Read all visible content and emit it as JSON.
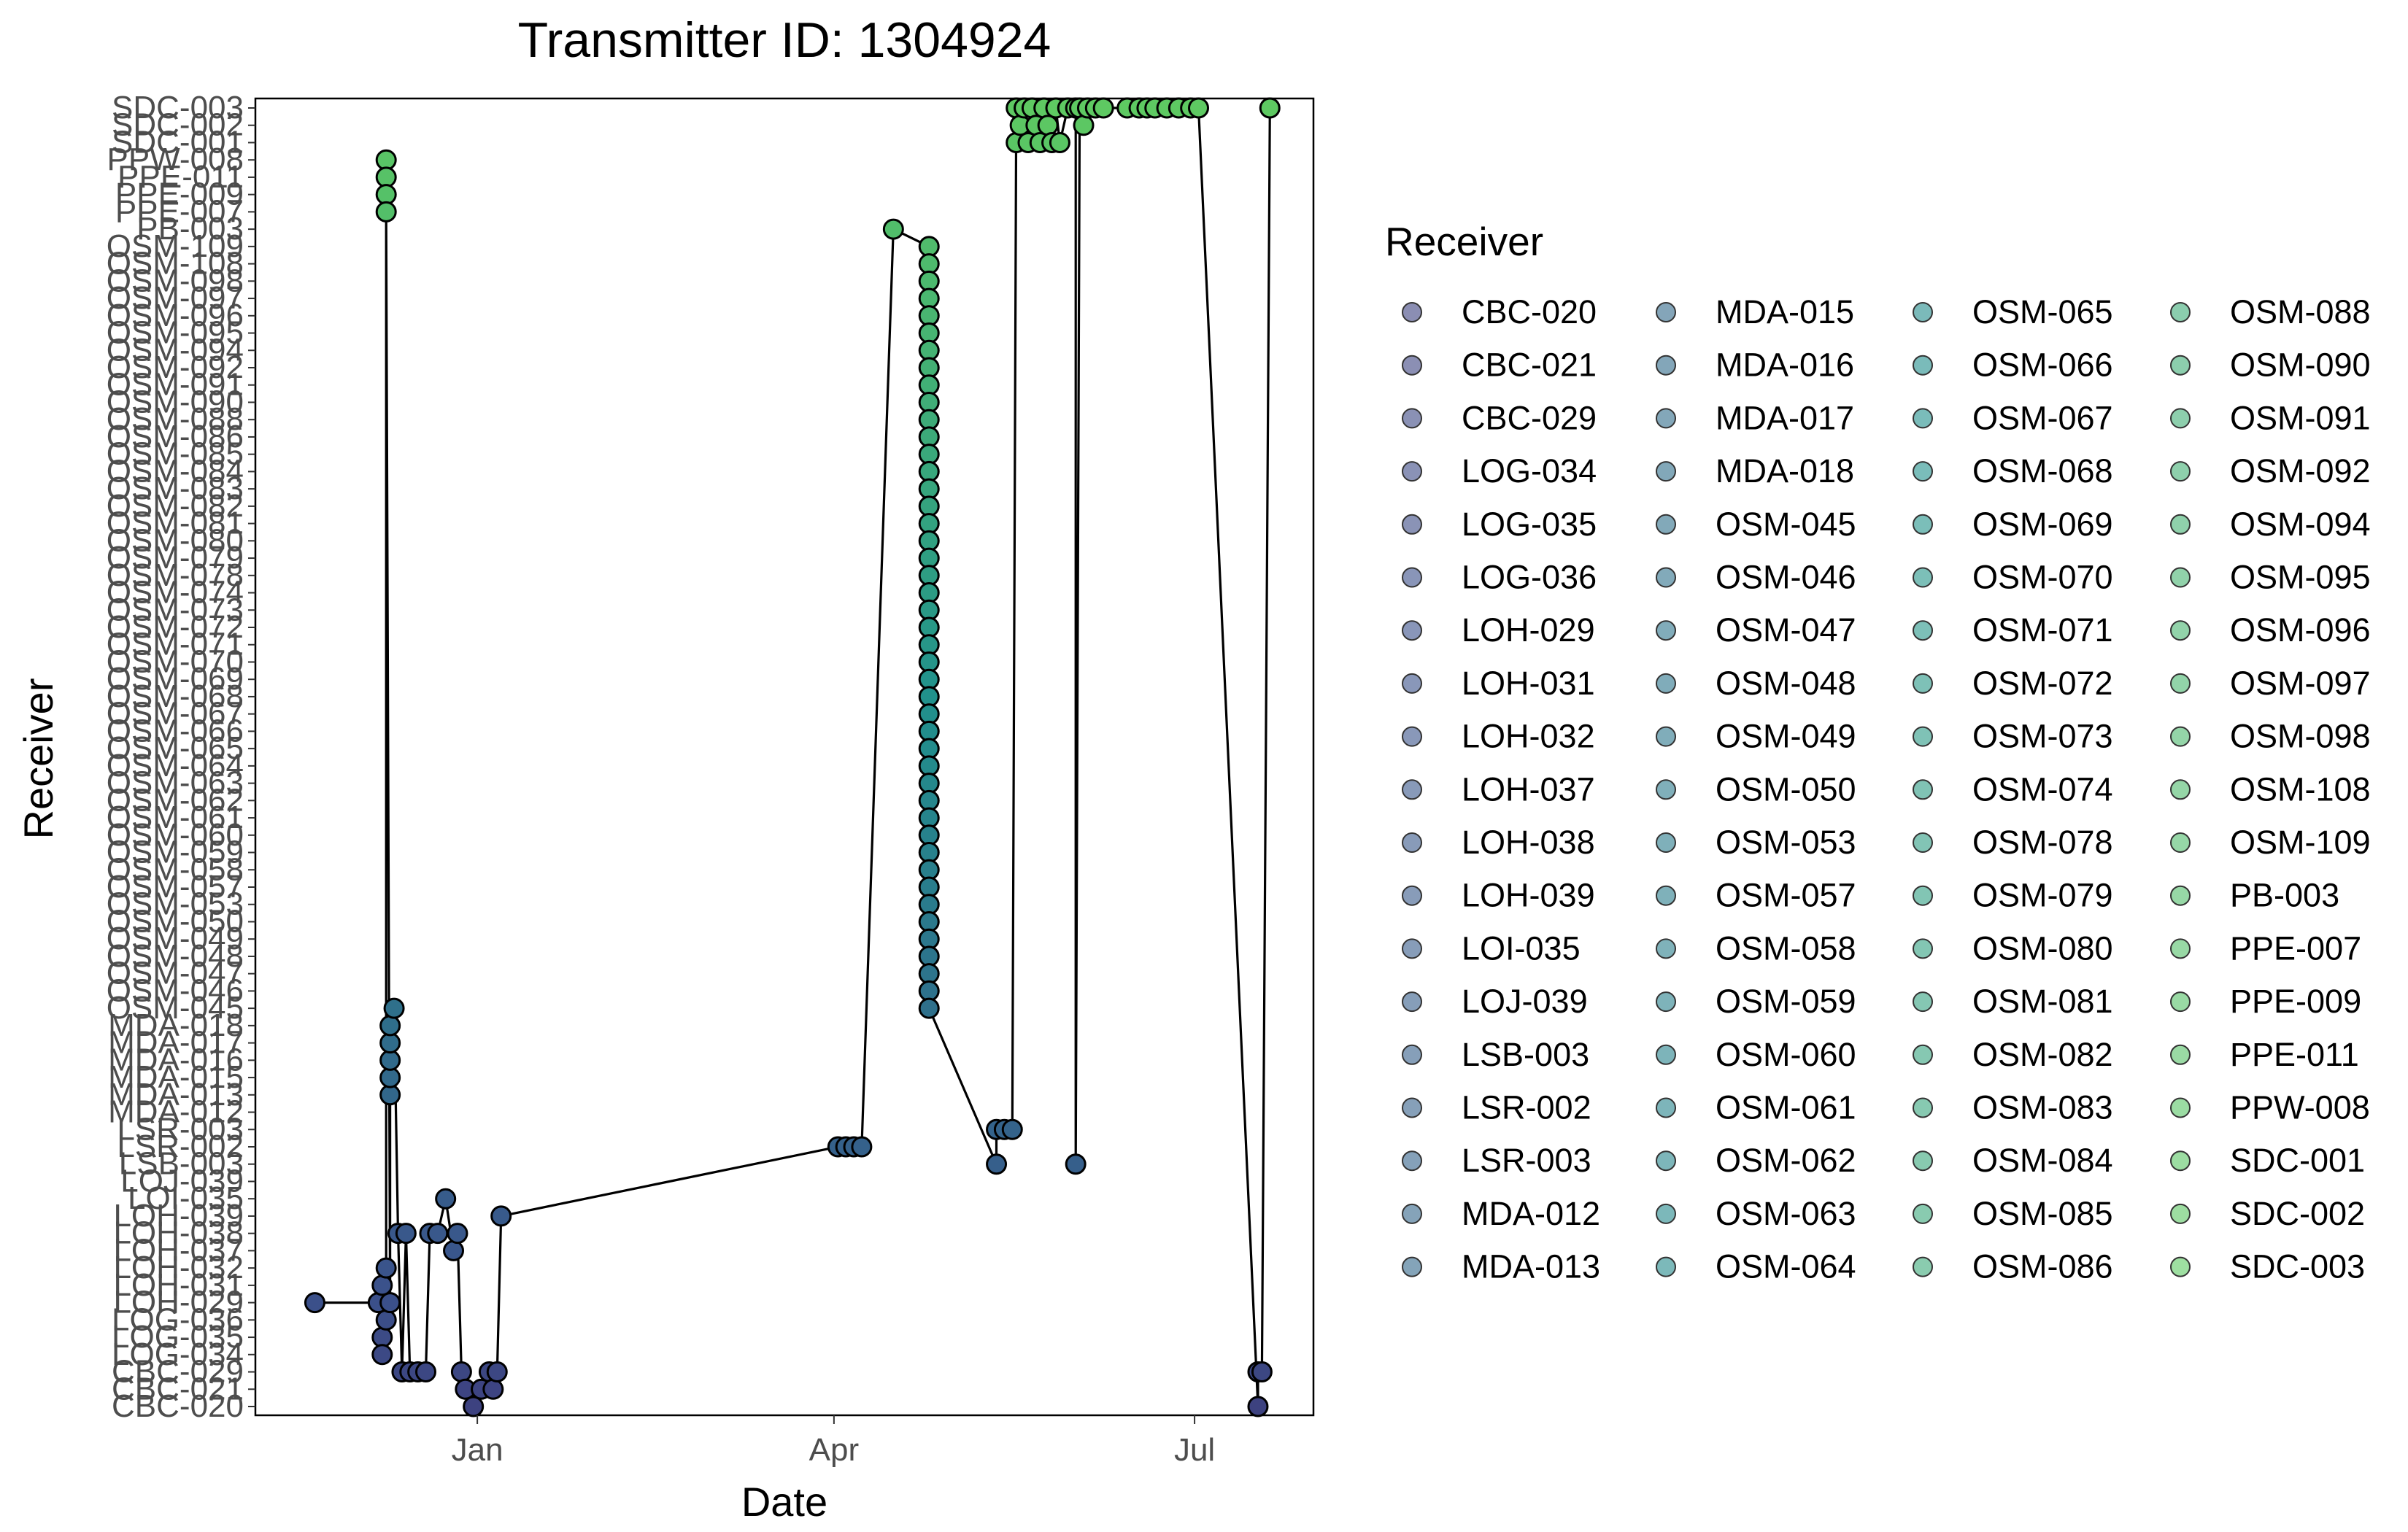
{
  "chart_data": {
    "type": "scatter",
    "title": "Transmitter ID: 1304924",
    "xlabel": "Date",
    "ylabel": "Receiver",
    "x_tick_labels": [
      "Jan",
      "Apr",
      "Jul"
    ],
    "x_ticks": [
      "2021-01-01",
      "2021-04-01",
      "2021-07-01"
    ],
    "xlim": [
      "2020-11-06",
      "2021-07-31"
    ],
    "grid": false,
    "legend": {
      "title": "Receiver",
      "placement": "right",
      "columns": 4
    },
    "receivers": [
      "CBC-020",
      "CBC-021",
      "CBC-029",
      "LOG-034",
      "LOG-035",
      "LOG-036",
      "LOH-029",
      "LOH-031",
      "LOH-032",
      "LOH-037",
      "LOH-038",
      "LOH-039",
      "LOI-035",
      "LOJ-039",
      "LSB-003",
      "LSR-002",
      "LSR-003",
      "MDA-012",
      "MDA-013",
      "MDA-015",
      "MDA-016",
      "MDA-017",
      "MDA-018",
      "OSM-045",
      "OSM-046",
      "OSM-047",
      "OSM-048",
      "OSM-049",
      "OSM-050",
      "OSM-053",
      "OSM-057",
      "OSM-058",
      "OSM-059",
      "OSM-060",
      "OSM-061",
      "OSM-062",
      "OSM-063",
      "OSM-064",
      "OSM-065",
      "OSM-066",
      "OSM-067",
      "OSM-068",
      "OSM-069",
      "OSM-070",
      "OSM-071",
      "OSM-072",
      "OSM-073",
      "OSM-074",
      "OSM-078",
      "OSM-079",
      "OSM-080",
      "OSM-081",
      "OSM-082",
      "OSM-083",
      "OSM-084",
      "OSM-085",
      "OSM-086",
      "OSM-088",
      "OSM-090",
      "OSM-091",
      "OSM-092",
      "OSM-094",
      "OSM-095",
      "OSM-096",
      "OSM-097",
      "OSM-098",
      "OSM-108",
      "OSM-109",
      "PB-003",
      "PPE-007",
      "PPE-009",
      "PPE-011",
      "PPW-008",
      "SDC-001",
      "SDC-002",
      "SDC-003"
    ],
    "detections": [
      [
        "2020-11-21",
        "LOH-029"
      ],
      [
        "2020-12-07",
        "LOH-029"
      ],
      [
        "2020-12-08",
        "LOH-031"
      ],
      [
        "2020-12-09",
        "LOH-032"
      ],
      [
        "2020-12-10",
        "LOH-029"
      ],
      [
        "2020-12-08",
        "LOG-035"
      ],
      [
        "2020-12-08",
        "LOG-034"
      ],
      [
        "2020-12-09",
        "LOG-036"
      ],
      [
        "2020-12-09",
        "PPW-008"
      ],
      [
        "2020-12-09",
        "PPE-011"
      ],
      [
        "2020-12-09",
        "PPE-009"
      ],
      [
        "2020-12-09",
        "PPE-007"
      ],
      [
        "2020-12-10",
        "MDA-013"
      ],
      [
        "2020-12-10",
        "MDA-015"
      ],
      [
        "2020-12-10",
        "MDA-016"
      ],
      [
        "2020-12-10",
        "MDA-017"
      ],
      [
        "2020-12-10",
        "MDA-018"
      ],
      [
        "2020-12-11",
        "OSM-045"
      ],
      [
        "2020-12-12",
        "LOH-038"
      ],
      [
        "2020-12-14",
        "LOH-038"
      ],
      [
        "2020-12-13",
        "CBC-029"
      ],
      [
        "2020-12-15",
        "CBC-029"
      ],
      [
        "2020-12-17",
        "CBC-029"
      ],
      [
        "2020-12-19",
        "CBC-029"
      ],
      [
        "2020-12-20",
        "LOH-038"
      ],
      [
        "2020-12-22",
        "LOH-038"
      ],
      [
        "2020-12-24",
        "LOI-035"
      ],
      [
        "2020-12-26",
        "LOH-037"
      ],
      [
        "2020-12-27",
        "LOH-038"
      ],
      [
        "2020-12-28",
        "CBC-029"
      ],
      [
        "2020-12-29",
        "CBC-021"
      ],
      [
        "2020-12-31",
        "CBC-020"
      ],
      [
        "2021-01-02",
        "CBC-021"
      ],
      [
        "2021-01-04",
        "CBC-029"
      ],
      [
        "2021-01-05",
        "CBC-021"
      ],
      [
        "2021-01-06",
        "CBC-029"
      ],
      [
        "2021-01-07",
        "LOH-039"
      ],
      [
        "2021-04-02",
        "LSR-002"
      ],
      [
        "2021-04-04",
        "LSR-002"
      ],
      [
        "2021-04-06",
        "LSR-002"
      ],
      [
        "2021-04-08",
        "LSR-002"
      ],
      [
        "2021-04-16",
        "PB-003"
      ],
      [
        "2021-04-25",
        "OSM-109"
      ],
      [
        "2021-04-25",
        "OSM-108"
      ],
      [
        "2021-04-25",
        "OSM-098"
      ],
      [
        "2021-04-25",
        "OSM-097"
      ],
      [
        "2021-04-25",
        "OSM-096"
      ],
      [
        "2021-04-25",
        "OSM-095"
      ],
      [
        "2021-04-25",
        "OSM-094"
      ],
      [
        "2021-04-25",
        "OSM-092"
      ],
      [
        "2021-04-25",
        "OSM-091"
      ],
      [
        "2021-04-25",
        "OSM-090"
      ],
      [
        "2021-04-25",
        "OSM-088"
      ],
      [
        "2021-04-25",
        "OSM-086"
      ],
      [
        "2021-04-25",
        "OSM-085"
      ],
      [
        "2021-04-25",
        "OSM-084"
      ],
      [
        "2021-04-25",
        "OSM-083"
      ],
      [
        "2021-04-25",
        "OSM-082"
      ],
      [
        "2021-04-25",
        "OSM-081"
      ],
      [
        "2021-04-25",
        "OSM-080"
      ],
      [
        "2021-04-25",
        "OSM-079"
      ],
      [
        "2021-04-25",
        "OSM-078"
      ],
      [
        "2021-04-25",
        "OSM-074"
      ],
      [
        "2021-04-25",
        "OSM-073"
      ],
      [
        "2021-04-25",
        "OSM-072"
      ],
      [
        "2021-04-25",
        "OSM-071"
      ],
      [
        "2021-04-25",
        "OSM-070"
      ],
      [
        "2021-04-25",
        "OSM-069"
      ],
      [
        "2021-04-25",
        "OSM-068"
      ],
      [
        "2021-04-25",
        "OSM-067"
      ],
      [
        "2021-04-25",
        "OSM-066"
      ],
      [
        "2021-04-25",
        "OSM-065"
      ],
      [
        "2021-04-25",
        "OSM-064"
      ],
      [
        "2021-04-25",
        "OSM-063"
      ],
      [
        "2021-04-25",
        "OSM-062"
      ],
      [
        "2021-04-25",
        "OSM-061"
      ],
      [
        "2021-04-25",
        "OSM-060"
      ],
      [
        "2021-04-25",
        "OSM-059"
      ],
      [
        "2021-04-25",
        "OSM-058"
      ],
      [
        "2021-04-25",
        "OSM-057"
      ],
      [
        "2021-04-25",
        "OSM-053"
      ],
      [
        "2021-04-25",
        "OSM-050"
      ],
      [
        "2021-04-25",
        "OSM-049"
      ],
      [
        "2021-04-25",
        "OSM-048"
      ],
      [
        "2021-04-25",
        "OSM-047"
      ],
      [
        "2021-04-25",
        "OSM-046"
      ],
      [
        "2021-04-25",
        "OSM-045"
      ],
      [
        "2021-05-12",
        "LSB-003"
      ],
      [
        "2021-05-12",
        "LSR-003"
      ],
      [
        "2021-05-14",
        "LSR-003"
      ],
      [
        "2021-05-16",
        "LSR-003"
      ],
      [
        "2021-05-17",
        "SDC-003"
      ],
      [
        "2021-05-17",
        "SDC-001"
      ],
      [
        "2021-05-18",
        "SDC-002"
      ],
      [
        "2021-05-19",
        "SDC-003"
      ],
      [
        "2021-05-20",
        "SDC-001"
      ],
      [
        "2021-05-21",
        "SDC-003"
      ],
      [
        "2021-05-22",
        "SDC-002"
      ],
      [
        "2021-05-23",
        "SDC-001"
      ],
      [
        "2021-05-24",
        "SDC-003"
      ],
      [
        "2021-05-25",
        "SDC-002"
      ],
      [
        "2021-05-26",
        "SDC-001"
      ],
      [
        "2021-05-27",
        "SDC-003"
      ],
      [
        "2021-05-28",
        "SDC-001"
      ],
      [
        "2021-05-30",
        "SDC-003"
      ],
      [
        "2021-06-01",
        "SDC-003"
      ],
      [
        "2021-06-01",
        "LSB-003"
      ],
      [
        "2021-06-02",
        "SDC-003"
      ],
      [
        "2021-06-03",
        "SDC-002"
      ],
      [
        "2021-06-04",
        "SDC-003"
      ],
      [
        "2021-06-06",
        "SDC-003"
      ],
      [
        "2021-06-08",
        "SDC-003"
      ],
      [
        "2021-06-14",
        "SDC-003"
      ],
      [
        "2021-06-17",
        "SDC-003"
      ],
      [
        "2021-06-19",
        "SDC-003"
      ],
      [
        "2021-06-21",
        "SDC-003"
      ],
      [
        "2021-06-24",
        "SDC-003"
      ],
      [
        "2021-06-27",
        "SDC-003"
      ],
      [
        "2021-06-30",
        "SDC-003"
      ],
      [
        "2021-07-02",
        "SDC-003"
      ],
      [
        "2021-07-17",
        "CBC-020"
      ],
      [
        "2021-07-17",
        "CBC-029"
      ],
      [
        "2021-07-18",
        "CBC-029"
      ],
      [
        "2021-07-20",
        "SDC-003"
      ]
    ]
  }
}
